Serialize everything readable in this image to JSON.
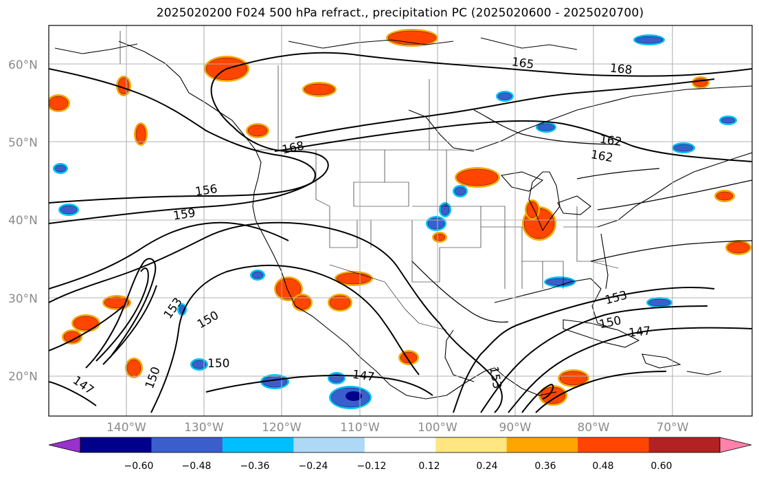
{
  "title": "2025020200 F024 500 hPa refract., precipitation PC (2025020600 - 2025020700)",
  "map": {
    "lat_ticks": [
      "60°N",
      "50°N",
      "40°N",
      "30°N",
      "20°N"
    ],
    "lon_ticks": [
      "140°W",
      "130°W",
      "120°W",
      "110°W",
      "100°W",
      "90°W",
      "80°W",
      "70°W"
    ],
    "contour_labels": [
      "165",
      "168",
      "162",
      "162",
      "168",
      "156",
      "159",
      "153",
      "150",
      "150",
      "150",
      "147",
      "153",
      "150",
      "147",
      "147",
      "153"
    ]
  },
  "colorbar": {
    "ticks": [
      "−0.60",
      "−0.48",
      "−0.36",
      "−0.24",
      "−0.12",
      "0.12",
      "0.24",
      "0.36",
      "0.48",
      "0.60"
    ],
    "colors": [
      "#9932CC",
      "#00008B",
      "#3A5FCD",
      "#00BFFF",
      "#ADD8F6",
      "#FFFFFF",
      "#FFE680",
      "#FFA500",
      "#FF4500",
      "#B22222",
      "#FF82AB"
    ]
  },
  "colors": {
    "positive_fill": "#FF4500",
    "positive_edge": "#FFA500",
    "negative_fill": "#3A5FCD",
    "negative_edge": "#00BFFF",
    "grid": "#b0b0b0",
    "contour": "#000000"
  }
}
